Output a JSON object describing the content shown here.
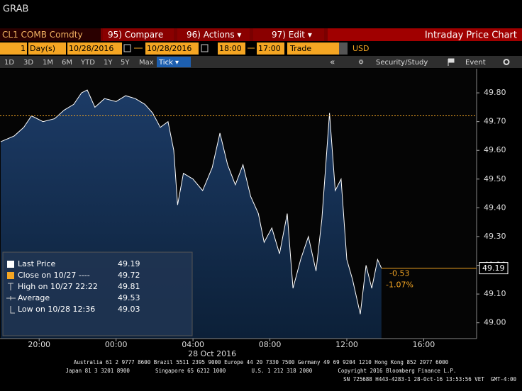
{
  "window_title": "GRAB",
  "toolbar": {
    "security": "CL1 COMB Comdty",
    "buttons": [
      "95) Compare",
      "96) Actions ▾",
      "97) Edit ▾"
    ],
    "title": "Intraday Price Chart"
  },
  "params": {
    "period": "1",
    "unit": "Day(s)",
    "start_date": "10/28/2016",
    "end_date": "10/28/2016",
    "start_time": "18:00",
    "end_time": "17:00",
    "event": "Trade",
    "currency": "USD"
  },
  "ranges": [
    "1D",
    "3D",
    "1M",
    "6M",
    "YTD",
    "1Y",
    "5Y",
    "Max",
    "Tick ▾"
  ],
  "tools": [
    "«",
    "Security/Study",
    "Event"
  ],
  "chart_data": {
    "type": "line",
    "x": [
      0,
      0.7,
      1.2,
      1.6,
      2.2,
      2.8,
      3.3,
      3.8,
      4.2,
      4.5,
      4.9,
      5.4,
      6,
      6.5,
      7,
      7.5,
      7.9,
      8.3,
      8.7,
      9,
      9.2,
      9.5,
      10,
      10.5,
      11,
      11.4,
      11.8,
      12.2,
      12.6,
      13,
      13.4,
      13.7,
      14.1,
      14.5,
      14.9,
      15.2,
      15.6,
      16,
      16.4,
      16.7,
      17.1,
      17.4,
      17.7,
      18,
      18.3,
      18.7,
      19,
      19.3,
      19.6,
      19.8
    ],
    "series": [
      {
        "name": "Last Price",
        "color": "#ffffff",
        "values": [
          49.63,
          49.65,
          49.68,
          49.72,
          49.7,
          49.71,
          49.74,
          49.76,
          49.8,
          49.81,
          49.75,
          49.78,
          49.77,
          49.79,
          49.78,
          49.76,
          49.73,
          49.68,
          49.7,
          49.6,
          49.41,
          49.52,
          49.5,
          49.46,
          49.54,
          49.66,
          49.55,
          49.48,
          49.55,
          49.44,
          49.38,
          49.28,
          49.33,
          49.24,
          49.38,
          49.12,
          49.22,
          49.3,
          49.18,
          49.36,
          49.73,
          49.46,
          49.5,
          49.22,
          49.15,
          49.03,
          49.2,
          49.12,
          49.22,
          49.19
        ]
      }
    ],
    "last_price": 49.19,
    "stats": [
      {
        "label": "Close on 10/27 ----",
        "value": 49.72,
        "color": "#f5a623"
      },
      {
        "label": "High on 10/27 22:22",
        "value": 49.81
      },
      {
        "label": "Average",
        "value": 49.53
      },
      {
        "label": "Low on 10/28 12:36",
        "value": 49.03
      }
    ],
    "change": -0.53,
    "change_pct": {
      "value": -1.07,
      "label": "-1.07%"
    },
    "xlim": [
      0,
      24.75
    ],
    "xticks": [
      {
        "value": 2,
        "label": "20:00"
      },
      {
        "value": 6,
        "label": "00:00"
      },
      {
        "value": 10,
        "label": "04:00"
      },
      {
        "value": 14,
        "label": "08:00"
      },
      {
        "value": 18,
        "label": "12:00"
      },
      {
        "value": 22,
        "label": "16:00"
      }
    ],
    "date_label": "28 Oct 2016",
    "ylim": [
      48.945,
      49.884
    ],
    "yticks": [
      {
        "value": 49.0,
        "label": "49.00"
      },
      {
        "value": 49.1,
        "label": "49.10"
      },
      {
        "value": 49.2,
        "label": "49.20"
      },
      {
        "value": 49.3,
        "label": "49.30"
      },
      {
        "value": 49.4,
        "label": "49.40"
      },
      {
        "value": 49.5,
        "label": "49.50"
      },
      {
        "value": 49.6,
        "label": "49.60"
      },
      {
        "value": 49.7,
        "label": "49.70"
      },
      {
        "value": 49.8,
        "label": "49.80"
      }
    ]
  },
  "footer": [
    "Australia 61 2 9777 8600 Brazil 5511 2395 9000 Europe 44 20 7330 7500 Germany 49 69 9204 1210 Hong Kong 852 2977 6000",
    "Japan 81 3 3201 8900        Singapore 65 6212 1000        U.S. 1 212 318 2000        Copyright 2016 Bloomberg Finance L.P.",
    "SN 725688 H443-4283-1 28-Oct-16 13:53:56 VET  GMT-4:00"
  ]
}
